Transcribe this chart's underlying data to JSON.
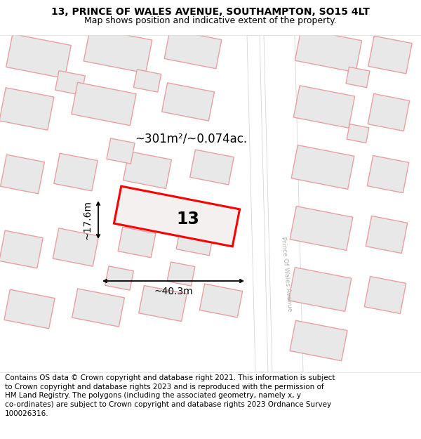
{
  "title_line1": "13, PRINCE OF WALES AVENUE, SOUTHAMPTON, SO15 4LT",
  "title_line2": "Map shows position and indicative extent of the property.",
  "footer_text": "Contains OS data © Crown copyright and database right 2021. This information is subject to Crown copyright and database rights 2023 and is reproduced with the permission of HM Land Registry. The polygons (including the associated geometry, namely x, y co-ordinates) are subject to Crown copyright and database rights 2023 Ordnance Survey 100026316.",
  "area_label": "~301m²/~0.074ac.",
  "width_label": "~40.3m",
  "height_label": "~17.6m",
  "plot_number": "13",
  "map_bg": "#f5f5f5",
  "plot_fill": "#f5f0f0",
  "plot_edge": "#ff0000",
  "building_fill": "#e8e8e8",
  "building_edge": "#e8a0a0",
  "road_color": "#ffffff",
  "street_label": "Prince Of Wales Avenue",
  "title_fontsize": 10,
  "subtitle_fontsize": 9,
  "footer_fontsize": 7.5
}
